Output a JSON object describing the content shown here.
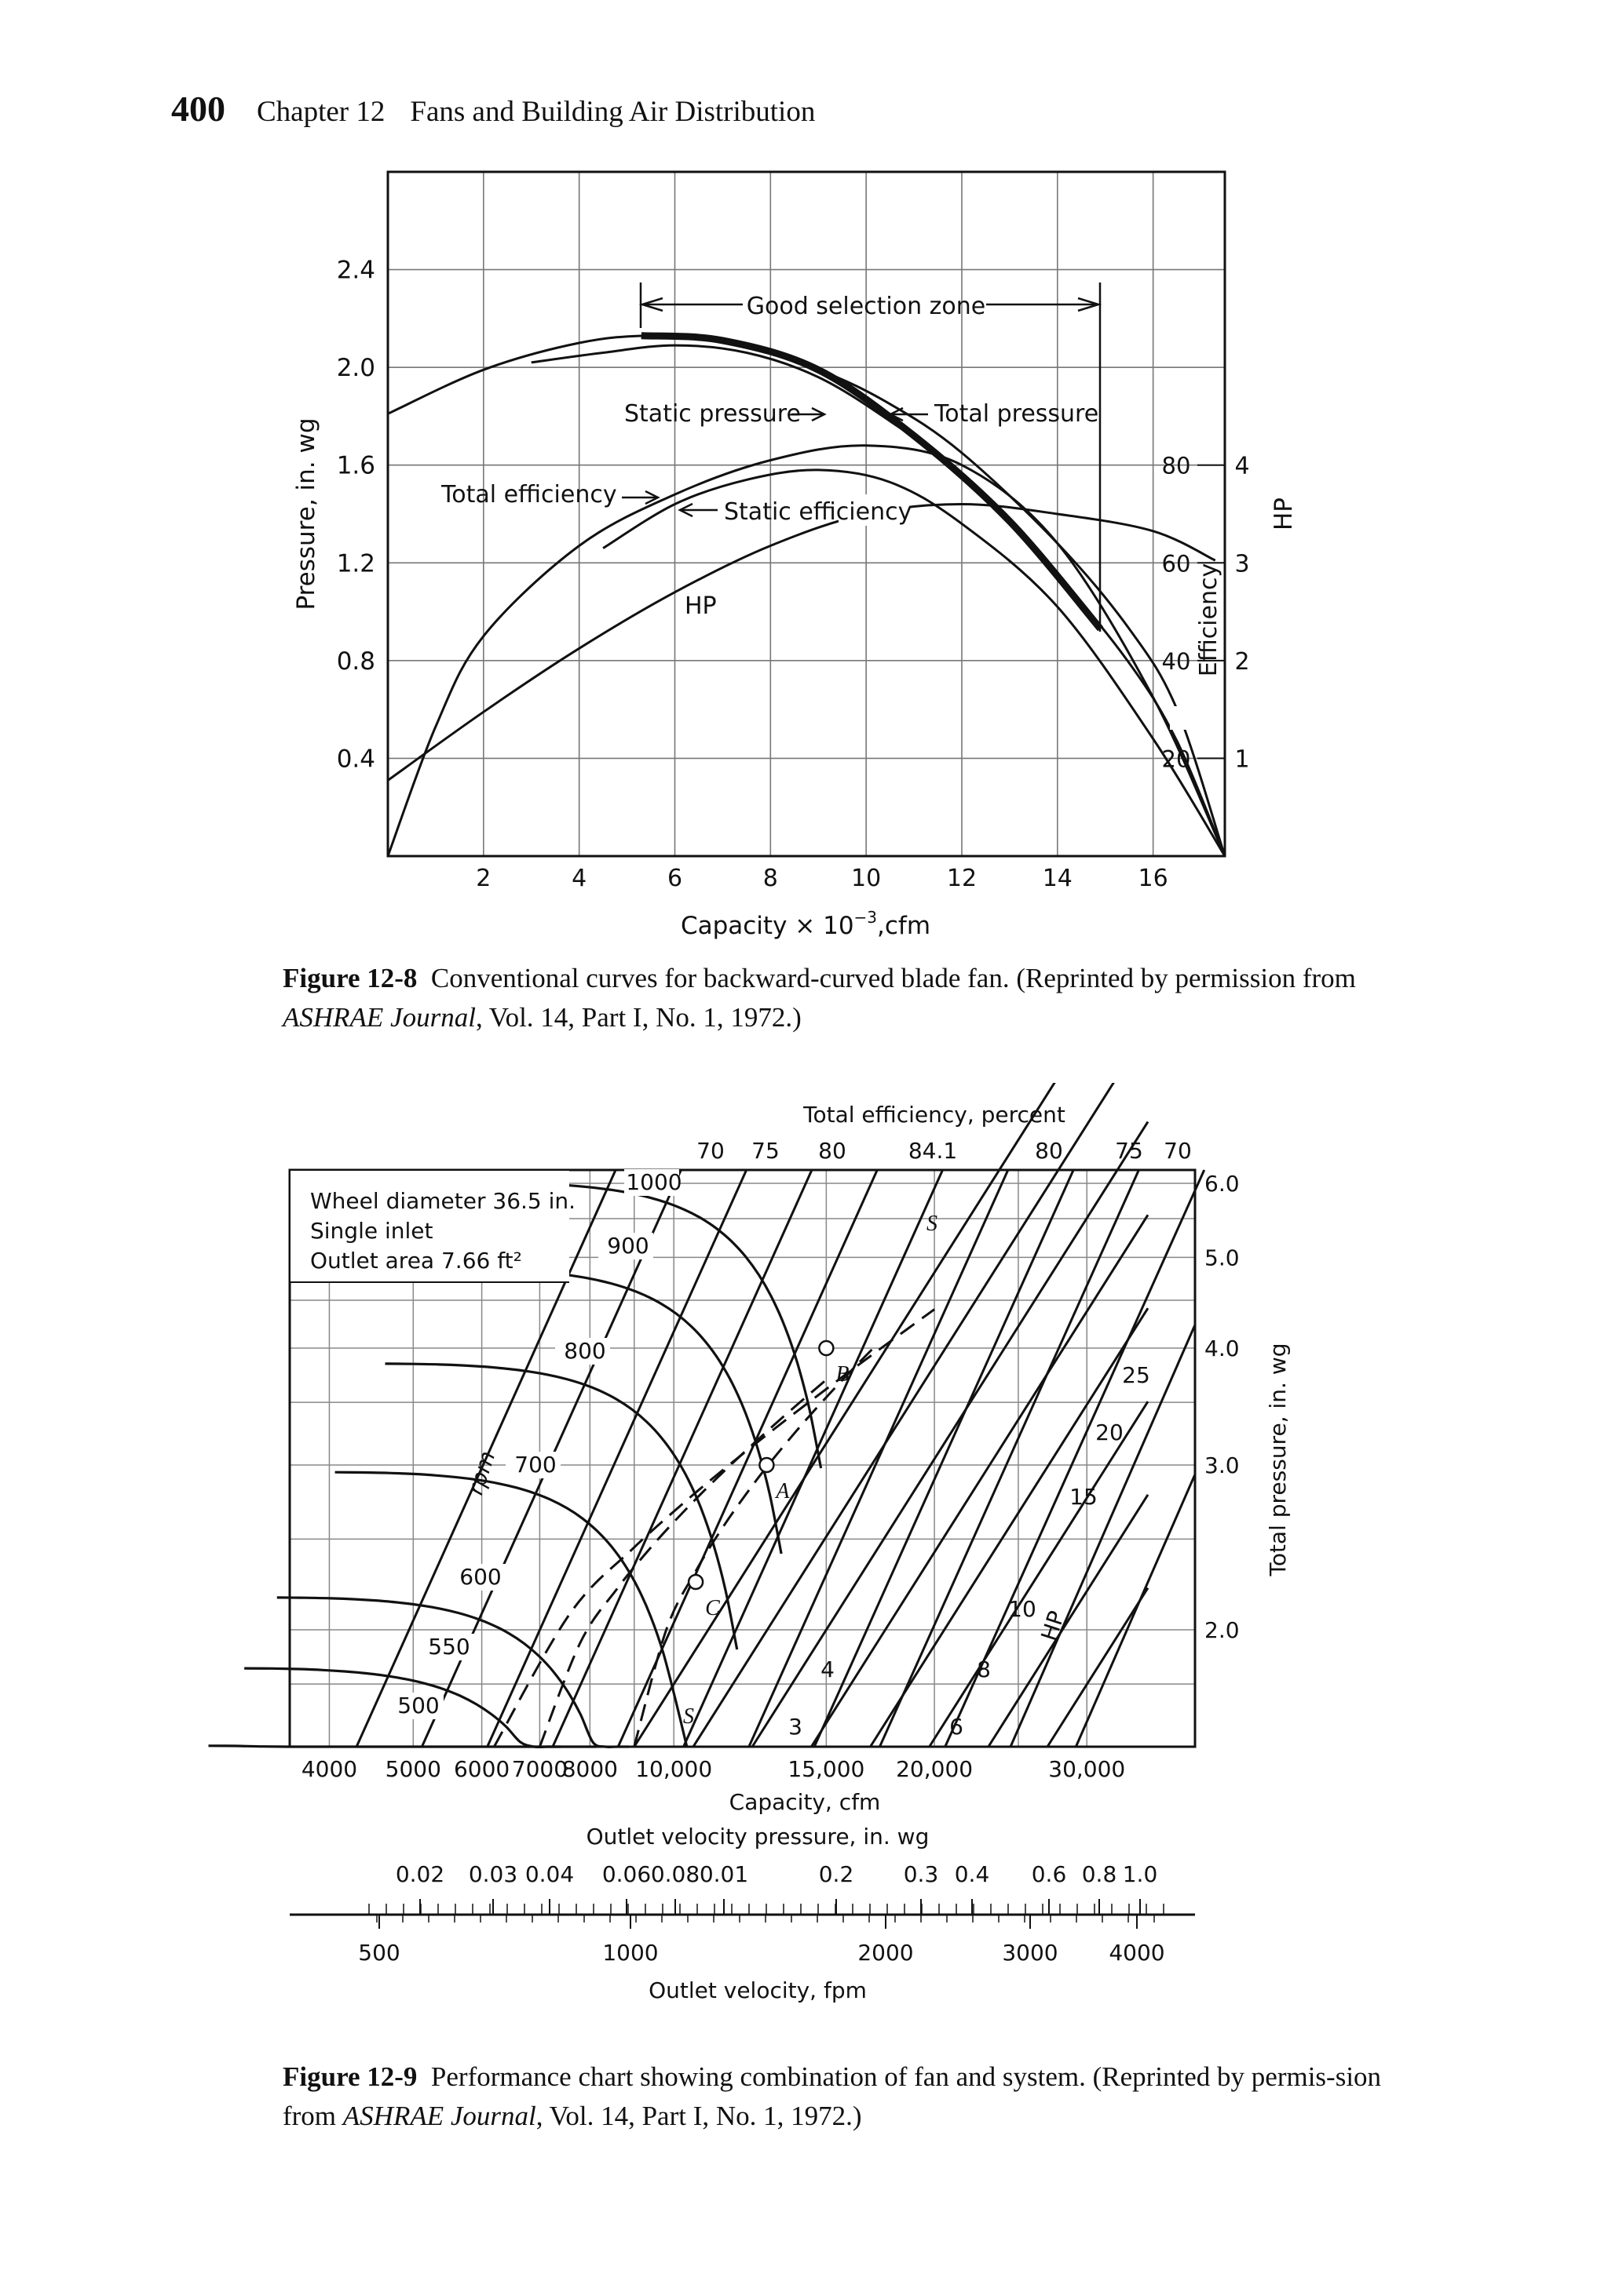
{
  "header": {
    "page_number": "400",
    "chapter": "Chapter 12",
    "title": "Fans and Building Air Distribution"
  },
  "fig8": {
    "caption_label": "Figure 12-8",
    "caption_text": "Conventional curves for backward-curved blade fan. (Reprinted by permission from ",
    "caption_journal": "ASHRAE Journal",
    "caption_tail": ", Vol. 14, Part I, No. 1, 1972.)",
    "xlabel_main": "Capacity × 10",
    "xlabel_exp": "−3",
    "xlabel_unit": ",cfm",
    "ylabel": "Pressure, in. wg",
    "y2label": "HP",
    "effaxis_label": "Efficiency",
    "labels": {
      "zone": "Good selection zone",
      "static_pressure": "Static pressure",
      "total_pressure": "Total pressure",
      "total_efficiency": "Total efficiency",
      "static_efficiency": "Static efficiency",
      "hp": "HP"
    }
  },
  "fig9": {
    "caption_label": "Figure 12-9",
    "caption_text": "Performance chart showing combination of fan and system. (Reprinted by permis-sion from ",
    "caption_journal": "ASHRAE Journal",
    "caption_tail": ", Vol. 14, Part I, No. 1, 1972.)",
    "top_label": "Total efficiency, percent",
    "info": [
      "Wheel diameter 36.5 in.",
      "Single inlet",
      "Outlet area 7.66 ft²"
    ],
    "rpm_label": "rpm",
    "hp_label": "HP",
    "xlabel": "Capacity, cfm",
    "ylabel": "Total pressure, in. wg",
    "ovp_label": "Outlet velocity pressure, in. wg",
    "ov_label": "Outlet velocity, fpm",
    "point_labels": [
      "A",
      "B",
      "C",
      "S",
      "S"
    ]
  },
  "chart_data": [
    {
      "type": "line",
      "x_range": [
        0,
        17.5
      ],
      "ylim": [
        0,
        2.8
      ],
      "x_ticks": [
        "2",
        "4",
        "6",
        "8",
        "10",
        "12",
        "14",
        "16"
      ],
      "y_ticks": [
        "0.4",
        "0.8",
        "1.2",
        "1.6",
        "2.0",
        "2.4"
      ],
      "efficiency_ticks": [
        "20",
        "40",
        "60",
        "80"
      ],
      "hp_ticks": [
        "1",
        "2",
        "3",
        "4"
      ],
      "grid": true,
      "series": [
        {
          "name": "Total pressure",
          "x": [
            0,
            2,
            4,
            5.5,
            7,
            9,
            10.5,
            12,
            14,
            15.5,
            16.5,
            17.5
          ],
          "y": [
            1.81,
            1.99,
            2.1,
            2.13,
            2.11,
            1.99,
            1.85,
            1.65,
            1.28,
            0.93,
            0.6,
            0
          ]
        },
        {
          "name": "Static pressure",
          "x": [
            3,
            4.5,
            6,
            7.5,
            9,
            10.5,
            12,
            14,
            15.5,
            16.5,
            17.5
          ],
          "y": [
            2.02,
            2.06,
            2.09,
            2.06,
            1.96,
            1.78,
            1.56,
            1.15,
            0.79,
            0.47,
            0
          ]
        },
        {
          "name": "Total efficiency",
          "x": [
            0,
            1,
            2,
            4,
            6,
            8,
            10,
            12,
            14,
            16,
            17.5
          ],
          "y": [
            0,
            0.53,
            0.9,
            1.27,
            1.48,
            1.62,
            1.68,
            1.6,
            1.28,
            0.65,
            0
          ]
        },
        {
          "name": "Static efficiency",
          "x": [
            4.5,
            6,
            7.5,
            9,
            10.5,
            12,
            14,
            16,
            17.5
          ],
          "y": [
            1.26,
            1.44,
            1.54,
            1.58,
            1.53,
            1.36,
            1.02,
            0.48,
            0
          ]
        },
        {
          "name": "HP",
          "x": [
            0,
            2,
            4,
            6,
            8,
            10,
            12,
            14,
            16,
            17.3
          ],
          "y": [
            0.31,
            0.59,
            0.85,
            1.08,
            1.27,
            1.4,
            1.44,
            1.4,
            1.33,
            1.21
          ]
        },
        {
          "name": "Good selection zone",
          "x": [
            5.3,
            7,
            9,
            11,
            13,
            14.9
          ],
          "y": [
            2.13,
            2.11,
            1.99,
            1.72,
            1.37,
            0.93
          ]
        }
      ]
    },
    {
      "type": "line",
      "x_axis": "Capacity, cfm (log)",
      "y_axis": "Total pressure, in. wg (log)",
      "x_ticks": [
        "4000",
        "5000",
        "6000",
        "7000",
        "8000",
        "10,000",
        "15,000",
        "20,000",
        "30,000"
      ],
      "y_ticks": [
        "2.0",
        "3.0",
        "4.0",
        "5.0",
        "6.0"
      ],
      "rpm_values": [
        "500",
        "550",
        "600",
        "700",
        "800",
        "900",
        "1000"
      ],
      "hp_values": [
        "3",
        "4",
        "6",
        "8",
        "10",
        "15",
        "20",
        "25"
      ],
      "efficiency_values": [
        "70",
        "75",
        "80",
        "84.1",
        "80",
        "75",
        "70"
      ],
      "points": [
        {
          "name": "A",
          "cfm": 12800,
          "tp": 3.0
        },
        {
          "name": "B",
          "cfm": 15000,
          "tp": 4.0
        },
        {
          "name": "C",
          "cfm": 10600,
          "tp": 2.25
        }
      ],
      "ovp_ticks": [
        "0.02",
        "0.03",
        "0.04",
        "0.06",
        "0.08",
        "0.01",
        "0.2",
        "0.3",
        "0.4",
        "0.6",
        "0.8",
        "1.0"
      ],
      "ov_ticks": [
        "500",
        "1000",
        "2000",
        "3000",
        "4000"
      ]
    }
  ]
}
